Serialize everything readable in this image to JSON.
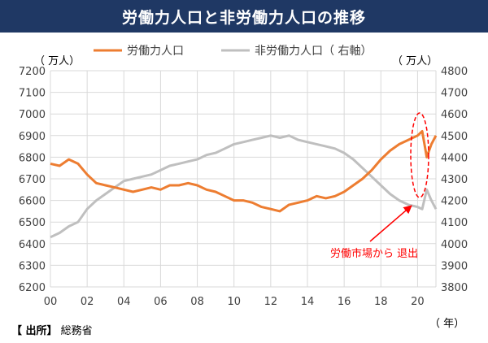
{
  "title": "労働力人口と非労働力人口の推移",
  "source": {
    "label": "【 出所】",
    "value": "総務省"
  },
  "colors": {
    "title_bg": "#1f3864",
    "labor": "#ed7d31",
    "non_labor": "#bfbfbf",
    "annotation": "#ff0000",
    "grid": "#d9d9d9"
  },
  "chart_data": {
    "type": "line",
    "title": "労働力人口と非労働力人口の推移",
    "left_axis": {
      "unit_label": "（ 万人）",
      "ylim": [
        6200,
        7200
      ],
      "ticks": [
        6200,
        6300,
        6400,
        6500,
        6600,
        6700,
        6800,
        6900,
        7000,
        7100,
        7200
      ]
    },
    "right_axis": {
      "unit_label": "（ 万人）",
      "ylim": [
        3800,
        4800
      ],
      "ticks": [
        3800,
        3900,
        4000,
        4100,
        4200,
        4300,
        4400,
        4500,
        4600,
        4700,
        4800
      ]
    },
    "x_axis": {
      "unit_label": "（ 年）",
      "xlim": [
        2000,
        2021
      ],
      "tick_values": [
        2000,
        2002,
        2004,
        2006,
        2008,
        2010,
        2012,
        2014,
        2016,
        2018,
        2020
      ],
      "tick_labels": [
        "00",
        "02",
        "04",
        "06",
        "08",
        "10",
        "12",
        "14",
        "16",
        "18",
        "20"
      ]
    },
    "grid": true,
    "legend": "top",
    "series": [
      {
        "name": "労働力人口",
        "axis": "left",
        "x": [
          2000.0,
          2000.5,
          2001.0,
          2001.5,
          2002.0,
          2002.5,
          2003.0,
          2003.5,
          2004.0,
          2004.5,
          2005.0,
          2005.5,
          2006.0,
          2006.5,
          2007.0,
          2007.5,
          2008.0,
          2008.5,
          2009.0,
          2009.5,
          2010.0,
          2010.5,
          2011.0,
          2011.5,
          2012.0,
          2012.5,
          2013.0,
          2013.5,
          2014.0,
          2014.5,
          2015.0,
          2015.5,
          2016.0,
          2016.5,
          2017.0,
          2017.5,
          2018.0,
          2018.5,
          2019.0,
          2019.5,
          2020.0,
          2020.25,
          2020.5,
          2020.75,
          2021.0
        ],
        "values": [
          6770,
          6760,
          6790,
          6770,
          6720,
          6680,
          6670,
          6660,
          6650,
          6640,
          6650,
          6660,
          6650,
          6670,
          6670,
          6680,
          6670,
          6650,
          6640,
          6620,
          6600,
          6600,
          6590,
          6570,
          6560,
          6550,
          6580,
          6590,
          6600,
          6620,
          6610,
          6620,
          6640,
          6670,
          6700,
          6740,
          6790,
          6830,
          6860,
          6880,
          6900,
          6920,
          6800,
          6860,
          6900
        ]
      },
      {
        "name": "非労働力人口（ 右軸）",
        "axis": "right",
        "x": [
          2000.0,
          2000.5,
          2001.0,
          2001.5,
          2002.0,
          2002.5,
          2003.0,
          2003.5,
          2004.0,
          2004.5,
          2005.0,
          2005.5,
          2006.0,
          2006.5,
          2007.0,
          2007.5,
          2008.0,
          2008.5,
          2009.0,
          2009.5,
          2010.0,
          2010.5,
          2011.0,
          2011.5,
          2012.0,
          2012.5,
          2013.0,
          2013.5,
          2014.0,
          2014.5,
          2015.0,
          2015.5,
          2016.0,
          2016.5,
          2017.0,
          2017.5,
          2018.0,
          2018.5,
          2019.0,
          2019.5,
          2020.0,
          2020.25,
          2020.5,
          2020.75,
          2021.0
        ],
        "values": [
          4030,
          4050,
          4080,
          4100,
          4160,
          4200,
          4230,
          4260,
          4290,
          4300,
          4310,
          4320,
          4340,
          4360,
          4370,
          4380,
          4390,
          4410,
          4420,
          4440,
          4460,
          4470,
          4480,
          4490,
          4500,
          4490,
          4500,
          4480,
          4470,
          4460,
          4450,
          4440,
          4420,
          4390,
          4350,
          4310,
          4270,
          4230,
          4200,
          4180,
          4170,
          4160,
          4250,
          4200,
          4160
        ]
      }
    ],
    "annotation": {
      "text": "労働市場から 退出"
    }
  }
}
